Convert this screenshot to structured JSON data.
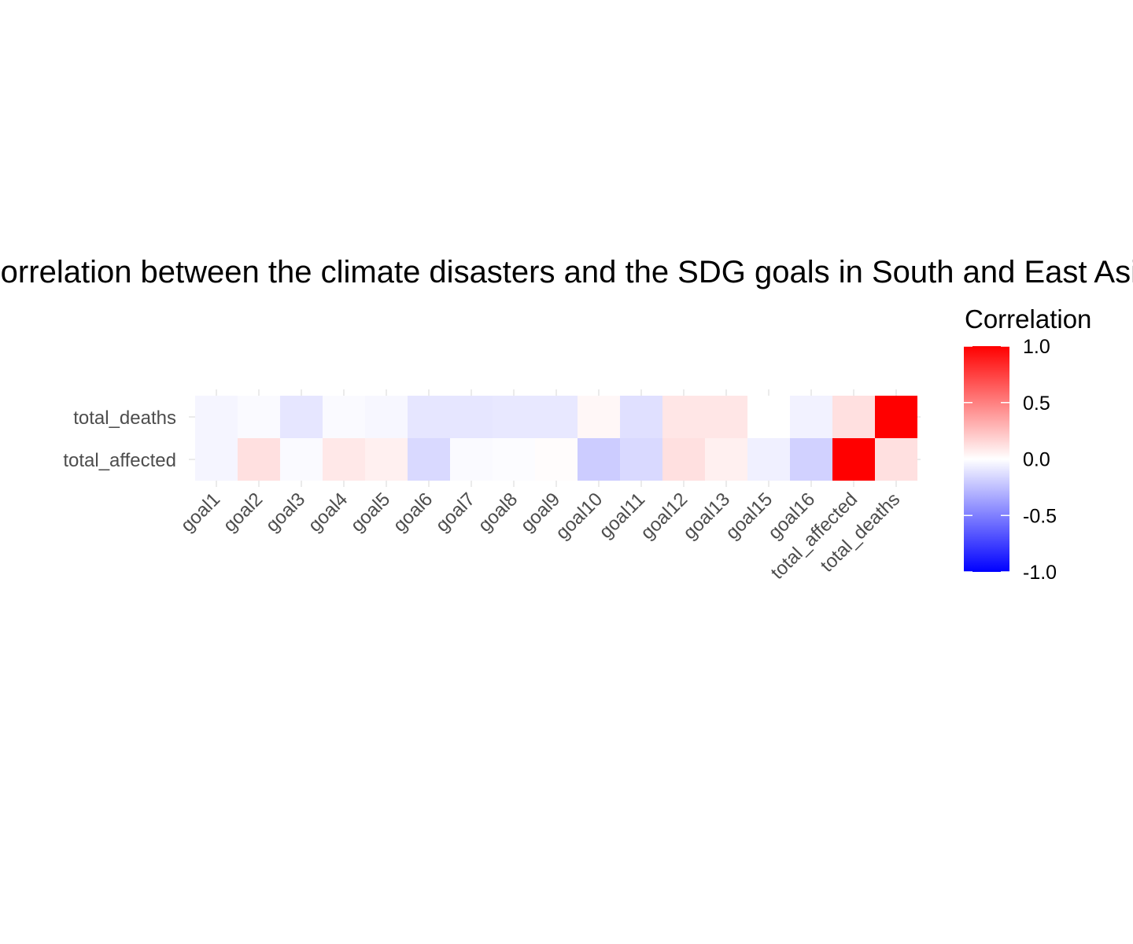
{
  "chart_data": {
    "type": "heatmap",
    "title": "Correlation between the climate disasters and the SDG goals in South and East Asia",
    "x_categories": [
      "goal1",
      "goal2",
      "goal3",
      "goal4",
      "goal5",
      "goal6",
      "goal7",
      "goal8",
      "goal9",
      "goal10",
      "goal11",
      "goal12",
      "goal13",
      "goal15",
      "goal16",
      "total_affected",
      "total_deaths"
    ],
    "y_categories": [
      "total_deaths",
      "total_affected"
    ],
    "values": [
      [
        -0.04,
        -0.02,
        -0.1,
        -0.02,
        -0.03,
        -0.1,
        -0.1,
        -0.09,
        -0.09,
        0.03,
        -0.12,
        0.1,
        0.1,
        0.0,
        -0.05,
        0.12,
        1.0
      ],
      [
        -0.04,
        0.12,
        -0.02,
        0.09,
        0.06,
        -0.15,
        -0.02,
        -0.01,
        0.01,
        -0.2,
        -0.15,
        0.12,
        0.06,
        -0.06,
        -0.18,
        1.0,
        0.12
      ]
    ],
    "color_scale": {
      "low": "#0000ff",
      "mid": "#ffffff",
      "high": "#ff0000",
      "limits": [
        -1,
        1
      ]
    },
    "legend": {
      "title": "Correlation",
      "position": "right",
      "ticks": [
        1.0,
        0.5,
        0.0,
        -0.5,
        -1.0
      ],
      "tick_labels": [
        "1.0",
        "0.5",
        "0.0",
        "-0.5",
        "-1.0"
      ]
    },
    "grid": true
  }
}
